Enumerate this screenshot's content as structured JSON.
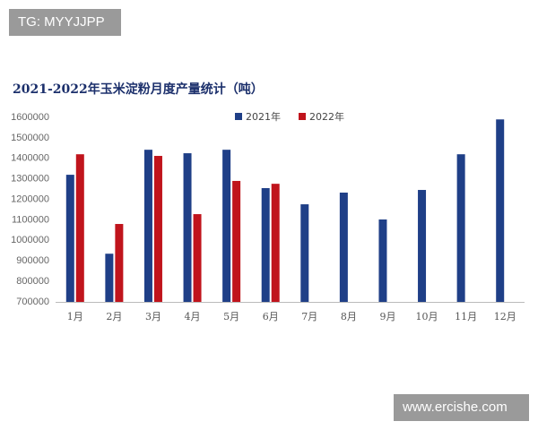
{
  "watermarks": [
    "TG: MYYJJPP",
    "www.ercishe.com"
  ],
  "chart_data": {
    "type": "bar",
    "title": "2021-2022年玉米淀粉月度产量统计（吨）",
    "categories": [
      "1月",
      "2月",
      "3月",
      "4月",
      "5月",
      "6月",
      "7月",
      "8月",
      "9月",
      "10月",
      "11月",
      "12月"
    ],
    "series": [
      {
        "name": "2021年",
        "color": "#1f3f87",
        "values": [
          1320000,
          935000,
          1442000,
          1425000,
          1442000,
          1255000,
          1176000,
          1233000,
          1102000,
          1246000,
          1420000,
          1590000
        ]
      },
      {
        "name": "2022年",
        "color": "#c0141c",
        "values": [
          1420000,
          1080000,
          1412000,
          1128000,
          1290000,
          1276000,
          null,
          null,
          null,
          null,
          null,
          null
        ]
      }
    ],
    "ylim": [
      700000,
      1600000
    ],
    "yticks": [
      700000,
      800000,
      900000,
      1000000,
      1100000,
      1200000,
      1300000,
      1400000,
      1500000,
      1600000
    ],
    "grid": false,
    "legend": "top"
  }
}
